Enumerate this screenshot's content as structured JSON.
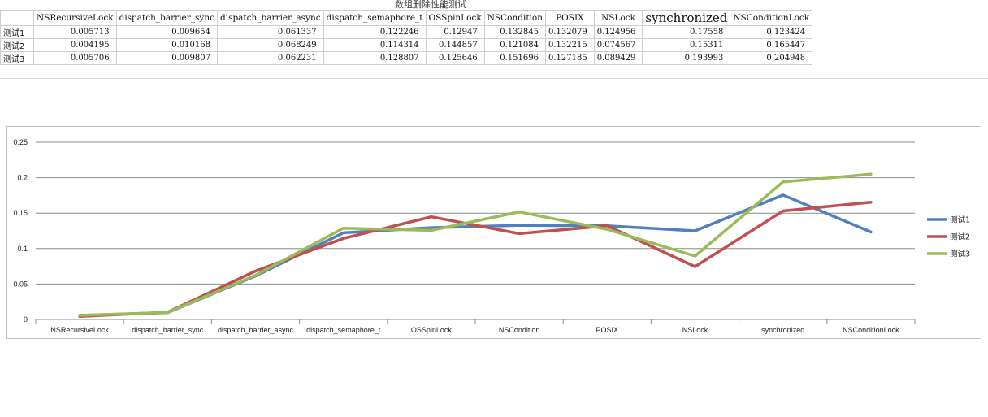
{
  "table": {
    "title": "数组删除性能测试",
    "headers": [
      "",
      "NSRecursiveLock",
      "dispatch_barrier_sync",
      "dispatch_barrier_async",
      "dispatch_semaphore_t",
      "OSSpinLock",
      "NSCondition",
      "POSIX",
      "NSLock",
      "synchronized",
      "NSConditionLock"
    ],
    "rows": [
      {
        "label": "测试1",
        "cells": [
          "0.005713",
          "0.009654",
          "0.061337",
          "0.122246",
          "0.12947",
          "0.132845",
          "0.132079",
          "0.124956",
          "0.17558",
          "0.123424"
        ]
      },
      {
        "label": "测试2",
        "cells": [
          "0.004195",
          "0.010168",
          "0.068249",
          "0.114314",
          "0.144857",
          "0.121084",
          "0.132215",
          "0.074567",
          "0.15311",
          "0.165447"
        ]
      },
      {
        "label": "测试3",
        "cells": [
          "0.005706",
          "0.009807",
          "0.062231",
          "0.128807",
          "0.125646",
          "0.151696",
          "0.127185",
          "0.089429",
          "0.193993",
          "0.204948"
        ]
      }
    ]
  },
  "chart_data": {
    "type": "line",
    "categories": [
      "NSRecursiveLock",
      "dispatch_barrier_sync",
      "dispatch_barrier_async",
      "dispatch_semaphore_t",
      "OSSpinLock",
      "NSCondition",
      "POSIX",
      "NSLock",
      "synchronized",
      "NSConditionLock"
    ],
    "series": [
      {
        "name": "测试1",
        "color": "#4f81bd",
        "values": [
          0.005713,
          0.009654,
          0.061337,
          0.122246,
          0.12947,
          0.132845,
          0.132079,
          0.124956,
          0.17558,
          0.123424
        ]
      },
      {
        "name": "测试2",
        "color": "#c0504d",
        "values": [
          0.004195,
          0.010168,
          0.068249,
          0.114314,
          0.144857,
          0.121084,
          0.132215,
          0.074567,
          0.15311,
          0.165447
        ]
      },
      {
        "name": "测试3",
        "color": "#9bbb59",
        "values": [
          0.005706,
          0.009807,
          0.062231,
          0.128807,
          0.125646,
          0.151696,
          0.127185,
          0.089429,
          0.193993,
          0.204948
        ]
      }
    ],
    "ylim": [
      0,
      0.25
    ],
    "yticks": [
      "0",
      "0.05",
      "0.1",
      "0.15",
      "0.2",
      "0.25"
    ],
    "ytick_values": [
      0,
      0.05,
      0.1,
      0.15,
      0.2,
      0.25
    ],
    "grid": "horizontal",
    "legend": "right"
  }
}
